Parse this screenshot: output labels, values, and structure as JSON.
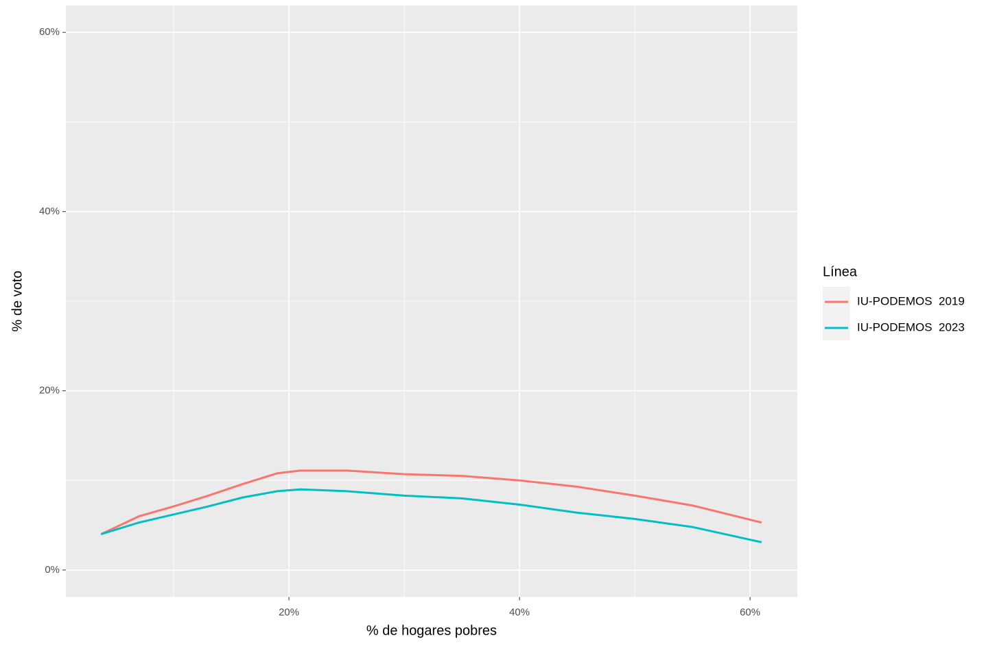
{
  "chart_data": {
    "type": "line",
    "x_label": "% de hogares pobres",
    "y_label": "% de voto",
    "legend_title": "Línea",
    "x": [
      3.7,
      7,
      10,
      13,
      16,
      19,
      21,
      25,
      30,
      35,
      40,
      45,
      50,
      55,
      61
    ],
    "series": [
      {
        "name": "IU-PODEMOS  2019",
        "color": "#F8766D",
        "values": [
          4.0,
          6.0,
          7.1,
          8.3,
          9.6,
          10.8,
          11.1,
          11.1,
          10.7,
          10.5,
          10.0,
          9.3,
          8.3,
          7.2,
          5.3
        ]
      },
      {
        "name": "IU-PODEMOS  2023",
        "color": "#00BFC4",
        "values": [
          4.0,
          5.3,
          6.2,
          7.1,
          8.1,
          8.8,
          9.0,
          8.8,
          8.3,
          8.0,
          7.3,
          6.4,
          5.7,
          4.8,
          3.1
        ]
      }
    ],
    "xlim": [
      0.65,
      64.1
    ],
    "ylim": [
      -3.0,
      63.0
    ],
    "xticks": [
      {
        "value": 20,
        "label": "20%"
      },
      {
        "value": 40,
        "label": "40%"
      },
      {
        "value": 60,
        "label": "60%"
      }
    ],
    "yticks": [
      {
        "value": 0,
        "label": "0%"
      },
      {
        "value": 20,
        "label": "20%"
      },
      {
        "value": 40,
        "label": "40%"
      },
      {
        "value": 60,
        "label": "60%"
      }
    ],
    "xminor": [
      10,
      30,
      50
    ],
    "yminor": [
      10,
      30,
      50
    ],
    "grid": true,
    "legend_position": "right"
  }
}
